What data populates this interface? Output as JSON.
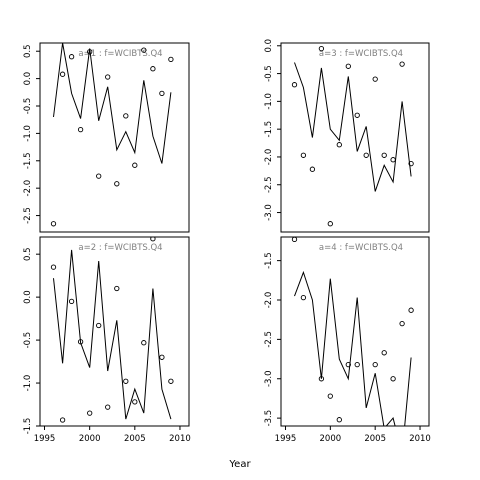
{
  "figure": {
    "xlabel": "Year"
  },
  "chart_data": [
    {
      "type": "line",
      "position": "top-left",
      "title": "a=1  :  f=WCIBTS.Q4",
      "xlim": [
        1994.5,
        2011
      ],
      "ylim": [
        -2.8,
        0.65
      ],
      "yticks": [
        0.5,
        0.0,
        -0.5,
        -1.0,
        -1.5,
        -2.0,
        -2.5
      ],
      "ytick_labels": [
        "0.5",
        "0.0",
        "-0.5",
        "-1.0",
        "-1.5",
        "-2.0",
        "-2.5"
      ],
      "xticks": [],
      "xtick_labels": [],
      "series": [
        {
          "style": "line",
          "x": [
            1996,
            1997,
            1998,
            1999,
            2000,
            2001,
            2002,
            2003,
            2004,
            2005,
            2006,
            2007,
            2008,
            2009
          ],
          "y": [
            -0.7,
            0.65,
            -0.27,
            -0.73,
            0.55,
            -0.77,
            -0.15,
            -1.3,
            -0.97,
            -1.35,
            -0.03,
            -1.05,
            -1.55,
            -0.25
          ]
        },
        {
          "style": "points",
          "x": [
            1996,
            1997,
            1998,
            1999,
            2000,
            2001,
            2002,
            2003,
            2004,
            2005,
            2006,
            2007,
            2008,
            2009
          ],
          "y": [
            -2.65,
            0.08,
            0.4,
            -0.93,
            0.49,
            -1.78,
            0.03,
            -1.92,
            -0.68,
            -1.58,
            0.52,
            0.18,
            -0.27,
            0.35
          ]
        }
      ]
    },
    {
      "type": "line",
      "position": "top-right",
      "title": "a=3  :  f=WCIBTS.Q4",
      "xlim": [
        1994.5,
        2011
      ],
      "ylim": [
        -3.35,
        0.05
      ],
      "yticks": [
        0.0,
        -0.5,
        -1.0,
        -1.5,
        -2.0,
        -2.5,
        -3.0
      ],
      "ytick_labels": [
        "0.0",
        "-0.5",
        "-1.0",
        "-1.5",
        "-2.0",
        "-2.5",
        "-3.0"
      ],
      "xticks": [],
      "xtick_labels": [],
      "series": [
        {
          "style": "line",
          "x": [
            1996,
            1997,
            1998,
            1999,
            2000,
            2001,
            2002,
            2003,
            2004,
            2005,
            2006,
            2007,
            2008,
            2009
          ],
          "y": [
            -0.3,
            -0.75,
            -1.65,
            -0.4,
            -1.5,
            -1.7,
            -0.55,
            -1.9,
            -1.45,
            -2.62,
            -2.15,
            -2.45,
            -1.0,
            -2.35
          ]
        },
        {
          "style": "points",
          "x": [
            1996,
            1997,
            1998,
            1999,
            2000,
            2001,
            2002,
            2003,
            2004,
            2005,
            2006,
            2007,
            2008,
            2009
          ],
          "y": [
            -0.7,
            -1.97,
            -2.22,
            -0.05,
            -3.2,
            -1.78,
            -0.37,
            -1.25,
            -1.97,
            -0.6,
            -1.97,
            -2.05,
            -0.33,
            -2.12
          ]
        }
      ]
    },
    {
      "type": "line",
      "position": "bottom-left",
      "title": "a=2  :  f=WCIBTS.Q4",
      "xlim": [
        1994.5,
        2011
      ],
      "ylim": [
        -1.5,
        0.7
      ],
      "yticks": [
        0.5,
        0.0,
        -0.5,
        -1.0,
        -1.5
      ],
      "ytick_labels": [
        "0.5",
        "0.0",
        "-0.5",
        "-1.0",
        "-1.5"
      ],
      "xticks": [
        1995,
        2000,
        2005,
        2010
      ],
      "xtick_labels": [
        "1995",
        "2000",
        "2005",
        "2010"
      ],
      "series": [
        {
          "style": "line",
          "x": [
            1996,
            1997,
            1998,
            1999,
            2000,
            2001,
            2002,
            2003,
            2004,
            2005,
            2006,
            2007,
            2008,
            2009
          ],
          "y": [
            0.22,
            -0.77,
            0.55,
            -0.53,
            -0.82,
            0.42,
            -0.86,
            -0.27,
            -1.42,
            -1.07,
            -1.35,
            0.1,
            -1.07,
            -1.42
          ]
        },
        {
          "style": "points",
          "x": [
            1996,
            1997,
            1998,
            1999,
            2000,
            2001,
            2002,
            2003,
            2004,
            2005,
            2006,
            2007,
            2008,
            2009
          ],
          "y": [
            0.35,
            -1.43,
            -0.05,
            -0.52,
            -1.35,
            -0.33,
            -1.28,
            0.1,
            -0.98,
            -1.22,
            -0.53,
            0.68,
            -0.7,
            -0.98
          ]
        }
      ]
    },
    {
      "type": "line",
      "position": "bottom-right",
      "title": "a=4  :  f=WCIBTS.Q4",
      "xlim": [
        1994.5,
        2011
      ],
      "ylim": [
        -3.6,
        -1.2
      ],
      "yticks": [
        -1.5,
        -2.0,
        -2.5,
        -3.0,
        -3.5
      ],
      "ytick_labels": [
        "-1.5",
        "-2.0",
        "-2.5",
        "-3.0",
        "-3.5"
      ],
      "xticks": [
        1995,
        2000,
        2005,
        2010
      ],
      "xtick_labels": [
        "1995",
        "2000",
        "2005",
        "2010"
      ],
      "series": [
        {
          "style": "line",
          "x": [
            1996,
            1997,
            1998,
            1999,
            2000,
            2001,
            2002,
            2003,
            2004,
            2005,
            2006,
            2007,
            2008,
            2009
          ],
          "y": [
            -1.95,
            -1.65,
            -2.0,
            -3.0,
            -1.73,
            -2.75,
            -3.0,
            -1.97,
            -3.37,
            -2.93,
            -3.63,
            -3.5,
            -3.95,
            -2.73
          ]
        },
        {
          "style": "points",
          "x": [
            1996,
            1997,
            1998,
            1999,
            2000,
            2001,
            2002,
            2003,
            2004,
            2005,
            2006,
            2007,
            2008,
            2009
          ],
          "y": [
            -1.23,
            -1.97,
            -1.03,
            -3.0,
            -3.22,
            -3.52,
            -2.82,
            -2.82,
            -1.03,
            -2.82,
            -2.67,
            -3.0,
            -2.3,
            -2.13
          ]
        }
      ]
    }
  ]
}
